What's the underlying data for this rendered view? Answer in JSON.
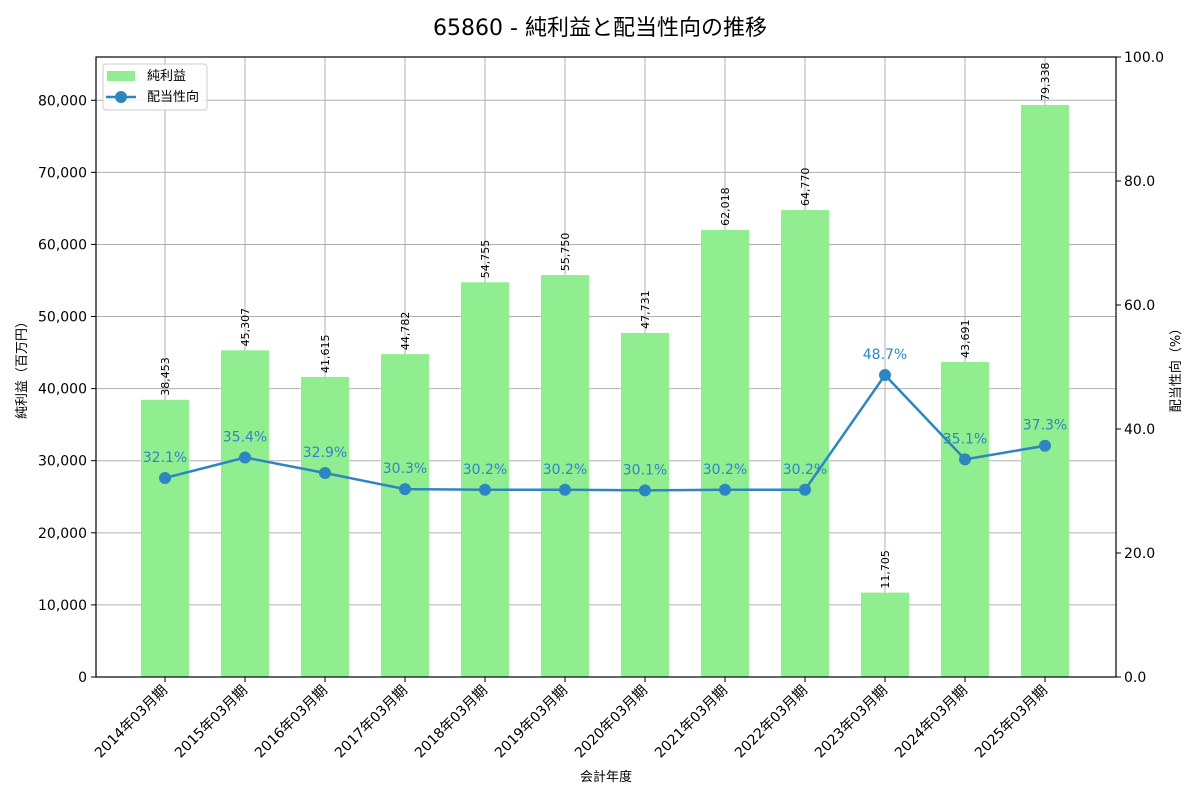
{
  "chart_data": {
    "type": "bar+line",
    "title": "65860 - 純利益と配当性向の推移",
    "xlabel": "会計年度",
    "ylabel": "純利益（百万円）",
    "y2label": "配当性向（%）",
    "categories": [
      "2014年03月期",
      "2015年03月期",
      "2016年03月期",
      "2017年03月期",
      "2018年03月期",
      "2019年03月期",
      "2020年03月期",
      "2021年03月期",
      "2022年03月期",
      "2023年03月期",
      "2024年03月期",
      "2025年03月期"
    ],
    "series": [
      {
        "name": "純利益",
        "type": "bar",
        "axis": "left",
        "color": "#90ee90",
        "values": [
          38453,
          45307,
          41615,
          44782,
          54755,
          55750,
          47731,
          62018,
          64770,
          11705,
          43691,
          79338
        ],
        "labels": [
          "38,453",
          "45,307",
          "41,615",
          "44,782",
          "54,755",
          "55,750",
          "47,731",
          "62,018",
          "64,770",
          "11,705",
          "43,691",
          "79,338"
        ]
      },
      {
        "name": "配当性向",
        "type": "line",
        "axis": "right",
        "color": "#2e86c1",
        "values": [
          32.1,
          35.4,
          32.9,
          30.3,
          30.2,
          30.2,
          30.1,
          30.2,
          30.2,
          48.7,
          35.1,
          37.3
        ],
        "labels": [
          "32.1%",
          "35.4%",
          "32.9%",
          "30.3%",
          "30.2%",
          "30.2%",
          "30.1%",
          "30.2%",
          "30.2%",
          "48.7%",
          "35.1%",
          "37.3%"
        ]
      }
    ],
    "ylim": [
      0,
      86000
    ],
    "y2lim": [
      0,
      100
    ],
    "yticks": [
      0,
      10000,
      20000,
      30000,
      40000,
      50000,
      60000,
      70000,
      80000
    ],
    "ytick_labels": [
      "0",
      "10,000",
      "20,000",
      "30,000",
      "40,000",
      "50,000",
      "60,000",
      "70,000",
      "80,000"
    ],
    "y2ticks": [
      0,
      20,
      40,
      60,
      80,
      100
    ],
    "y2tick_labels": [
      "0.0",
      "20.0",
      "40.0",
      "60.0",
      "80.0",
      "100.0"
    ],
    "grid": true,
    "legend_position": "upper left"
  }
}
